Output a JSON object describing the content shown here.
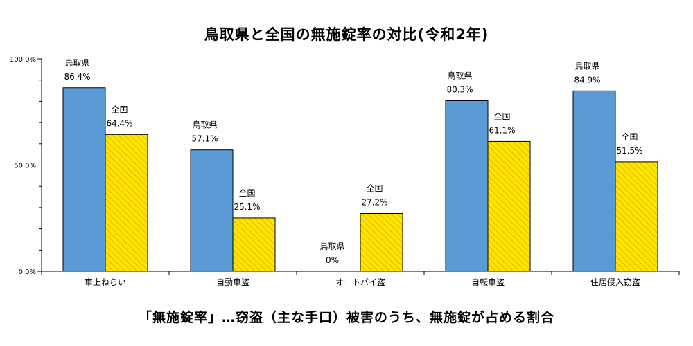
{
  "title": "鳥取県と全国の無施錠率の対比(令和2年)",
  "caption": "「無施錠率」…窃盗（主な手口）被害のうち、無施錠が占める割合",
  "colors": {
    "tottori": "#5b9bd5",
    "national_fill": "#ffe600",
    "national_stripe": "#e6b800"
  },
  "chart_data": {
    "type": "bar",
    "title": "鳥取県と全国の無施錠率の対比(令和2年)",
    "categories": [
      "車上ねらい",
      "自動車盗",
      "オートバイ盗",
      "自転車盗",
      "住居侵入窃盗"
    ],
    "series": [
      {
        "name": "鳥取県",
        "values": [
          86.4,
          57.1,
          0,
          80.3,
          84.9
        ],
        "labels": [
          "86.4%",
          "57.1%",
          "0%",
          "80.3%",
          "84.9%"
        ]
      },
      {
        "name": "全国",
        "values": [
          64.4,
          25.1,
          27.2,
          61.1,
          51.5
        ],
        "labels": [
          "64.4%",
          "25.1%",
          "27.2%",
          "61.1%",
          "51.5%"
        ]
      }
    ],
    "ylim": [
      0,
      100
    ],
    "yticks": [
      0,
      50,
      100
    ],
    "ytick_labels": [
      "0.0%",
      "50.0%",
      "100.0%"
    ],
    "xlabel": "",
    "ylabel": "",
    "grid": false,
    "legend": "none"
  }
}
